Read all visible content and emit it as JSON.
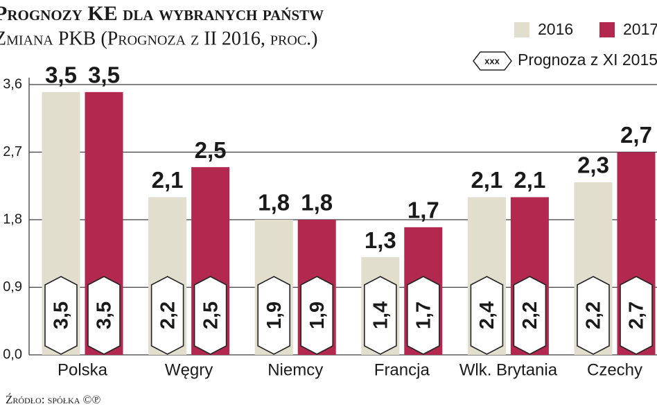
{
  "chart_data": {
    "type": "bar",
    "title": "Prognozy KE dla wybranych państw",
    "subtitle": "Zmiana PKB (Prognoza z II 2016, proc.)",
    "source": "Źródło: spółka ©℗",
    "categories": [
      "Polska",
      "Węgry",
      "Niemcy",
      "Francja",
      "Wlk. Brytania",
      "Czechy"
    ],
    "series": [
      {
        "name": "2016",
        "color": "#e1decd",
        "values": [
          3.5,
          2.1,
          1.8,
          1.3,
          2.1,
          2.3
        ],
        "value_labels": [
          "3,5",
          "2,1",
          "1,8",
          "1,3",
          "2,1",
          "2,3"
        ]
      },
      {
        "name": "2017",
        "color": "#b2284e",
        "values": [
          3.5,
          2.5,
          1.8,
          1.7,
          2.1,
          2.7
        ],
        "value_labels": [
          "3,5",
          "2,5",
          "1,8",
          "1,7",
          "2,1",
          "2,7"
        ]
      }
    ],
    "forecast": {
      "name": "Prognoza z XI 2015",
      "symbol": "xxx",
      "series": [
        {
          "values": [
            3.5,
            2.2,
            1.9,
            1.4,
            2.4,
            2.2
          ],
          "value_labels": [
            "3,5",
            "2,2",
            "1,9",
            "1,4",
            "2,4",
            "2,2"
          ]
        },
        {
          "values": [
            3.5,
            2.5,
            1.9,
            1.7,
            2.2,
            2.7
          ],
          "value_labels": [
            "3,5",
            "2,5",
            "1,9",
            "1,7",
            "2,2",
            "2,7"
          ]
        }
      ]
    },
    "ylim": [
      0,
      3.6
    ],
    "yticks": [
      {
        "value": 0,
        "label": "0,0"
      },
      {
        "value": 0.9,
        "label": "0,9"
      },
      {
        "value": 1.8,
        "label": "1,8"
      },
      {
        "value": 2.7,
        "label": "2,7"
      },
      {
        "value": 3.6,
        "label": "3,6"
      }
    ],
    "grid": true
  }
}
